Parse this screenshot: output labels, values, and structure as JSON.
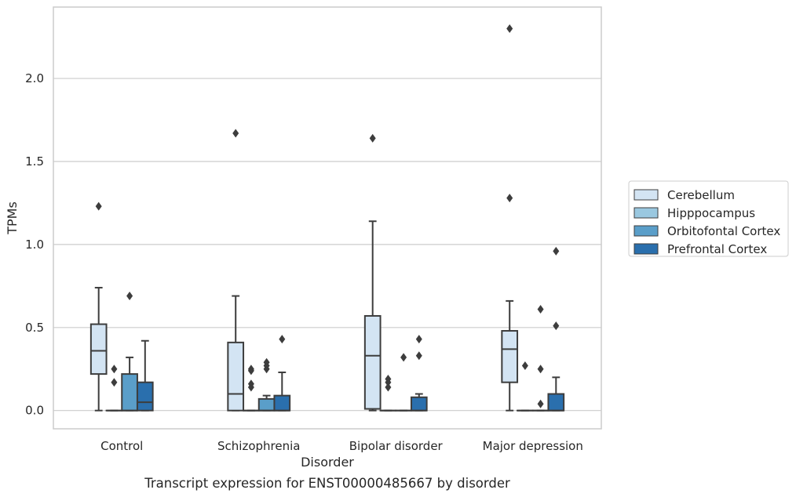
{
  "chart_data": {
    "type": "box",
    "caption": "Transcript expression for ENST00000485667 by disorder",
    "xlabel": "Disorder",
    "ylabel": "TPMs",
    "ylim": [
      -0.11,
      2.43
    ],
    "yticks": [
      0.0,
      0.5,
      1.0,
      1.5,
      2.0
    ],
    "ytick_labels": [
      "0.0",
      "0.5",
      "1.0",
      "1.5",
      "2.0"
    ],
    "grid": true,
    "legend_position": "right",
    "categories": [
      "Control",
      "Schizophrenia",
      "Bipolar disorder",
      "Major depression"
    ],
    "series": [
      {
        "name": "Cerebellum",
        "color": "#d3e4f3",
        "boxes": [
          {
            "whislo": 0.0,
            "q1": 0.22,
            "med": 0.36,
            "q3": 0.52,
            "whishi": 0.74,
            "fliers": [
              1.23
            ]
          },
          {
            "whislo": 0.0,
            "q1": 0.0,
            "med": 0.1,
            "q3": 0.41,
            "whishi": 0.69,
            "fliers": [
              1.67
            ]
          },
          {
            "whislo": 0.0,
            "q1": 0.01,
            "med": 0.33,
            "q3": 0.57,
            "whishi": 1.14,
            "fliers": [
              1.64
            ]
          },
          {
            "whislo": 0.0,
            "q1": 0.17,
            "med": 0.37,
            "q3": 0.48,
            "whishi": 0.66,
            "fliers": [
              1.28,
              2.3
            ]
          }
        ]
      },
      {
        "name": "Hipppocampus",
        "color": "#9ac8e0",
        "boxes": [
          {
            "whislo": 0.0,
            "q1": 0.0,
            "med": 0.0,
            "q3": 0.0,
            "whishi": 0.0,
            "fliers": [
              0.17,
              0.25
            ]
          },
          {
            "whislo": 0.0,
            "q1": 0.0,
            "med": 0.0,
            "q3": 0.0,
            "whishi": 0.0,
            "fliers": [
              0.14,
              0.16,
              0.24,
              0.25
            ]
          },
          {
            "whislo": 0.0,
            "q1": 0.0,
            "med": 0.0,
            "q3": 0.0,
            "whishi": 0.0,
            "fliers": [
              0.14,
              0.17,
              0.19
            ]
          },
          {
            "whislo": 0.0,
            "q1": 0.0,
            "med": 0.0,
            "q3": 0.0,
            "whishi": 0.0,
            "fliers": [
              0.27
            ]
          }
        ]
      },
      {
        "name": "Orbitofontal Cortex",
        "color": "#5a9ec9",
        "boxes": [
          {
            "whislo": 0.0,
            "q1": 0.0,
            "med": 0.0,
            "q3": 0.22,
            "whishi": 0.32,
            "fliers": [
              0.69
            ]
          },
          {
            "whislo": 0.0,
            "q1": 0.0,
            "med": 0.0,
            "q3": 0.07,
            "whishi": 0.09,
            "fliers": [
              0.25,
              0.27,
              0.29
            ]
          },
          {
            "whislo": 0.0,
            "q1": 0.0,
            "med": 0.0,
            "q3": 0.0,
            "whishi": 0.0,
            "fliers": [
              0.32
            ]
          },
          {
            "whislo": 0.0,
            "q1": 0.0,
            "med": 0.0,
            "q3": 0.0,
            "whishi": 0.0,
            "fliers": [
              0.04,
              0.25,
              0.61
            ]
          }
        ]
      },
      {
        "name": "Prefrontal Cortex",
        "color": "#2a6fad",
        "boxes": [
          {
            "whislo": 0.0,
            "q1": 0.0,
            "med": 0.05,
            "q3": 0.17,
            "whishi": 0.42,
            "fliers": []
          },
          {
            "whislo": 0.0,
            "q1": 0.0,
            "med": 0.0,
            "q3": 0.09,
            "whishi": 0.23,
            "fliers": [
              0.43
            ]
          },
          {
            "whislo": 0.0,
            "q1": 0.0,
            "med": 0.0,
            "q3": 0.08,
            "whishi": 0.1,
            "fliers": [
              0.33,
              0.43
            ]
          },
          {
            "whislo": 0.0,
            "q1": 0.0,
            "med": 0.0,
            "q3": 0.1,
            "whishi": 0.2,
            "fliers": [
              0.51,
              0.96
            ]
          }
        ]
      }
    ]
  }
}
